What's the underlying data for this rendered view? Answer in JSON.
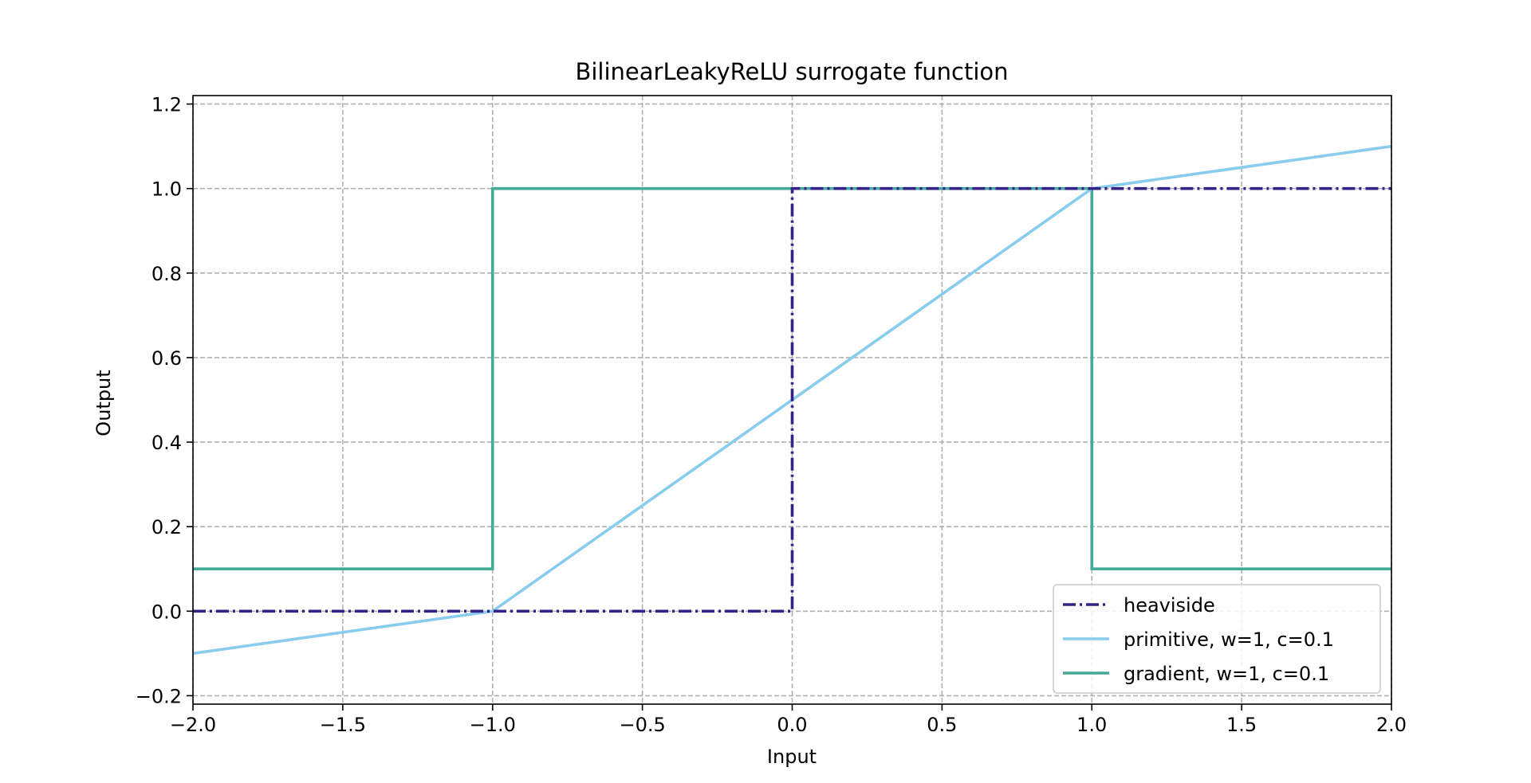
{
  "chart_data": {
    "type": "line",
    "title": "BilinearLeakyReLU surrogate function",
    "xlabel": "Input",
    "ylabel": "Output",
    "xlim": [
      -2.0,
      2.0
    ],
    "ylim": [
      -0.22,
      1.22
    ],
    "x_ticks": [
      -2.0,
      -1.5,
      -1.0,
      -0.5,
      0.0,
      0.5,
      1.0,
      1.5,
      2.0
    ],
    "x_tick_labels": [
      "−2.0",
      "−1.5",
      "−1.0",
      "−0.5",
      "0.0",
      "0.5",
      "1.0",
      "1.5",
      "2.0"
    ],
    "y_ticks": [
      -0.2,
      0.0,
      0.2,
      0.4,
      0.6,
      0.8,
      1.0,
      1.2
    ],
    "y_tick_labels": [
      "−0.2",
      "0.0",
      "0.2",
      "0.4",
      "0.6",
      "0.8",
      "1.0",
      "1.2"
    ],
    "grid": true,
    "legend_position": "lower-right",
    "series": [
      {
        "name": "heaviside",
        "color": "#332288",
        "style": "dashdot",
        "x": [
          -2.0,
          0.0,
          0.0,
          2.0
        ],
        "y": [
          0.0,
          0.0,
          1.0,
          1.0
        ]
      },
      {
        "name": "primitive, w=1, c=0.1",
        "color": "#88CCEE",
        "style": "solid",
        "x": [
          -2.0,
          -1.0,
          1.0,
          2.0
        ],
        "y": [
          -0.1,
          0.0,
          1.0,
          1.1
        ]
      },
      {
        "name": "gradient, w=1, c=0.1",
        "color": "#44AA99",
        "style": "solid",
        "x": [
          -2.0,
          -1.0,
          -1.0,
          1.0,
          1.0,
          2.0
        ],
        "y": [
          0.1,
          0.1,
          1.0,
          1.0,
          0.1,
          0.1
        ]
      }
    ]
  }
}
